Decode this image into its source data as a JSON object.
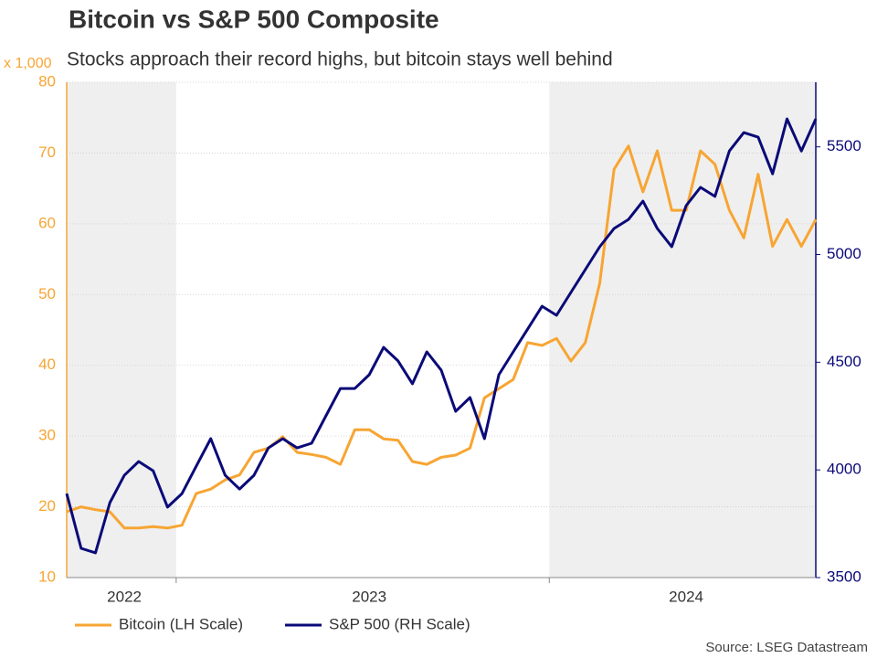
{
  "chart_data": {
    "type": "line",
    "title": "Bitcoin vs S&P 500 Composite",
    "subtitle": "Stocks approach their record highs, but bitcoin stays well behind",
    "y_unit_label": "x 1,000",
    "source": "Source: LSEG Datastream",
    "categories": [
      null,
      null,
      null,
      null,
      "2022",
      null,
      null,
      null,
      null,
      null,
      null,
      null,
      null,
      null,
      null,
      null,
      null,
      null,
      null,
      null,
      null,
      "2023",
      null,
      null,
      null,
      null,
      null,
      null,
      null,
      null,
      null,
      null,
      null,
      null,
      null,
      null,
      null,
      null,
      null,
      null,
      null,
      null,
      null,
      "2024",
      null,
      null,
      null,
      null,
      null,
      null,
      null,
      null,
      null
    ],
    "series": [
      {
        "name": "Bitcoin (LH Scale)",
        "color": "#f7a533",
        "axis": "y",
        "values": [
          19.3,
          20,
          19.6,
          19.3,
          17,
          17,
          17.2,
          17,
          17.4,
          21.9,
          22.5,
          23.8,
          24.5,
          27.7,
          28.3,
          29.9,
          27.7,
          27.4,
          27,
          26,
          30.9,
          30.9,
          29.6,
          29.4,
          26.4,
          26,
          27,
          27.3,
          28.3,
          35.4,
          36.7,
          38,
          43.2,
          42.8,
          43.8,
          40.6,
          43.2,
          51.6,
          67.7,
          71,
          64.5,
          70.3,
          61.9,
          61.9,
          70.3,
          68.4,
          61.9,
          58,
          67,
          56.8,
          60.6,
          56.8,
          60.6
        ]
      },
      {
        "name": "S&P 500 (RH Scale)",
        "color": "#0a0a78",
        "axis": "y2",
        "values": [
          3890,
          3636,
          3615,
          3848,
          3975,
          4039,
          3996,
          3827,
          3890,
          4018,
          4145,
          3975,
          3911,
          3975,
          4102,
          4145,
          4102,
          4124,
          4251,
          4378,
          4378,
          4442,
          4569,
          4506,
          4400,
          4548,
          4463,
          4272,
          4336,
          4145,
          4442,
          4548,
          4654,
          4760,
          4718,
          4824,
          4930,
          5036,
          5121,
          5163,
          5248,
          5121,
          5036,
          5227,
          5312,
          5270,
          5481,
          5566,
          5545,
          5375,
          5630,
          5481,
          5630
        ]
      }
    ],
    "ylim": [
      10,
      80
    ],
    "yticks": [
      10,
      20,
      30,
      40,
      50,
      60,
      70,
      80
    ],
    "y2lim": [
      3500,
      5800
    ],
    "y2ticks": [
      3500,
      4000,
      4500,
      5000,
      5500
    ],
    "grid": true
  }
}
